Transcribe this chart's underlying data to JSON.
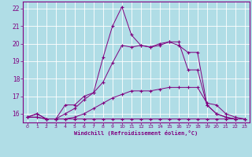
{
  "xlabel": "Windchill (Refroidissement éolien,°C)",
  "background_color": "#b0dde6",
  "grid_color": "#ffffff",
  "line_color": "#800080",
  "x_values": [
    0,
    1,
    2,
    3,
    4,
    5,
    6,
    7,
    8,
    9,
    10,
    11,
    12,
    13,
    14,
    15,
    16,
    17,
    18,
    19,
    20,
    21,
    22,
    23
  ],
  "s1": [
    15.8,
    16.0,
    15.7,
    15.7,
    15.7,
    15.7,
    15.7,
    15.7,
    15.7,
    15.7,
    15.7,
    15.7,
    15.7,
    15.7,
    15.7,
    15.7,
    15.7,
    15.7,
    15.7,
    15.7,
    15.7,
    15.7,
    15.7,
    15.7
  ],
  "s2": [
    15.8,
    15.8,
    15.7,
    15.7,
    15.7,
    15.8,
    16.0,
    16.3,
    16.6,
    16.9,
    17.1,
    17.3,
    17.3,
    17.3,
    17.4,
    17.5,
    17.5,
    17.5,
    17.5,
    16.6,
    16.5,
    16.0,
    15.8,
    15.7
  ],
  "s3": [
    15.8,
    15.8,
    15.7,
    15.7,
    16.0,
    16.3,
    16.8,
    17.2,
    17.8,
    18.9,
    19.9,
    19.8,
    19.9,
    19.8,
    19.9,
    20.1,
    19.9,
    19.5,
    19.5,
    16.5,
    16.0,
    15.8,
    15.7,
    15.7
  ],
  "s4": [
    15.8,
    16.0,
    15.7,
    15.7,
    16.5,
    16.5,
    17.0,
    17.2,
    19.2,
    21.0,
    22.1,
    20.5,
    19.9,
    19.8,
    20.0,
    20.1,
    20.1,
    18.5,
    18.5,
    16.5,
    16.0,
    15.8,
    15.7,
    15.7
  ],
  "ylim": [
    15.5,
    22.4
  ],
  "xlim": [
    -0.5,
    23.5
  ],
  "yticks": [
    16,
    17,
    18,
    19,
    20,
    21,
    22
  ],
  "xticks": [
    0,
    1,
    2,
    3,
    4,
    5,
    6,
    7,
    8,
    9,
    10,
    11,
    12,
    13,
    14,
    15,
    16,
    17,
    18,
    19,
    20,
    21,
    22,
    23
  ],
  "xlabels": [
    "0",
    "1",
    "2",
    "3",
    "4",
    "5",
    "6",
    "7",
    "8",
    "9",
    "10",
    "11",
    "12",
    "13",
    "14",
    "15",
    "16",
    "17",
    "18",
    "19",
    "20",
    "21",
    "22",
    "23"
  ]
}
